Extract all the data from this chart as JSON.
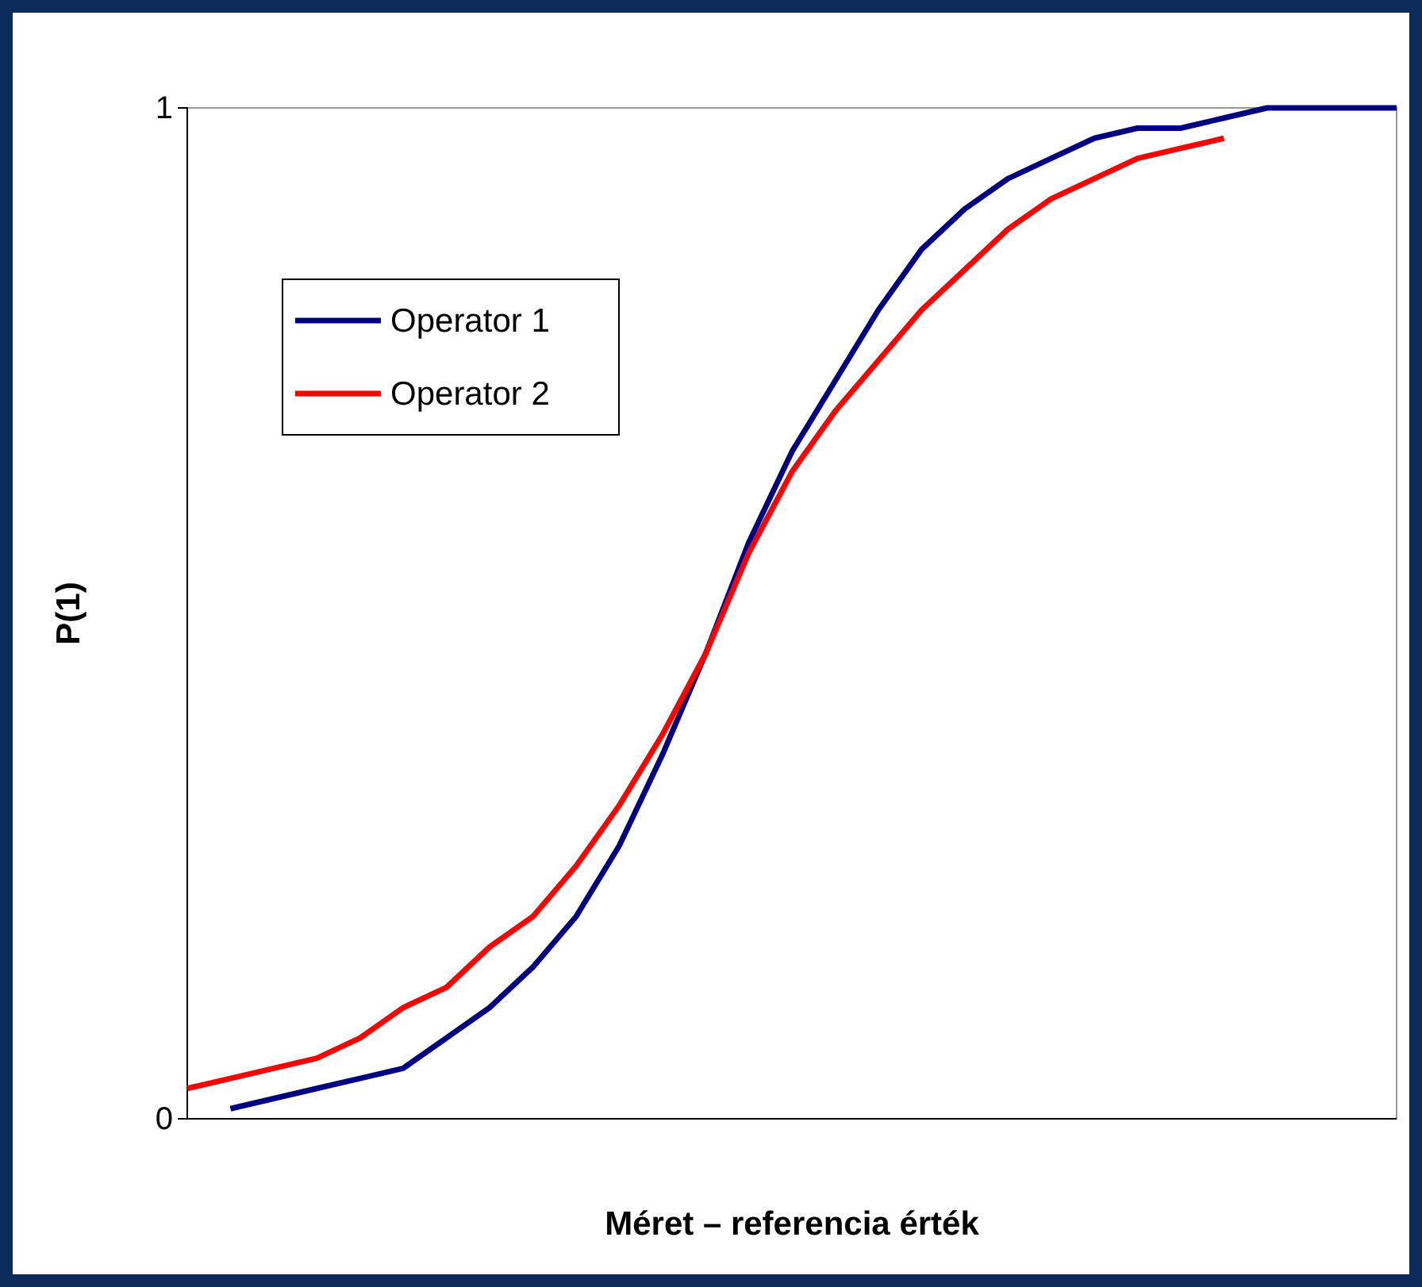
{
  "chart_data": {
    "type": "line",
    "xlabel": "Méret – referencia érték",
    "ylabel": "P(1)",
    "categories": [
      null,
      null,
      null,
      null,
      null,
      null,
      null,
      null,
      null,
      null,
      null,
      null,
      null,
      null,
      null,
      null,
      null,
      null,
      null,
      null,
      null,
      null,
      null,
      null,
      null,
      null,
      null,
      null,
      null
    ],
    "series": [
      {
        "name": "Operator 1",
        "color": "#000080",
        "values": [
          null,
          0.01,
          0.02,
          0.03,
          0.04,
          0.05,
          0.08,
          0.11,
          0.15,
          0.2,
          0.27,
          0.36,
          0.46,
          0.57,
          0.66,
          0.73,
          0.8,
          0.86,
          0.9,
          0.93,
          0.95,
          0.97,
          0.98,
          0.98,
          0.99,
          1.0,
          1.0,
          1.0,
          1.0
        ]
      },
      {
        "name": "Operator 2",
        "color": "#ff0000",
        "values": [
          0.03,
          0.04,
          0.05,
          0.06,
          0.08,
          0.11,
          0.13,
          0.17,
          0.2,
          0.25,
          0.31,
          0.38,
          0.46,
          0.56,
          0.64,
          0.7,
          0.75,
          0.8,
          0.84,
          0.88,
          0.91,
          0.93,
          0.95,
          0.96,
          0.97,
          null,
          null,
          null,
          null
        ]
      }
    ],
    "ylim": [
      0,
      1
    ],
    "yticks": [
      0,
      1
    ],
    "legend": "top left",
    "line_style": "solid",
    "grid": false
  }
}
